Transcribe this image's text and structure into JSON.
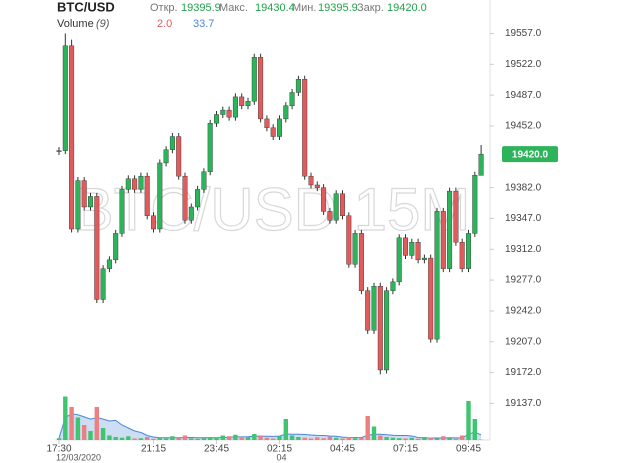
{
  "chart_data": {
    "type": "candlestick",
    "title": "BTC/USD",
    "watermark": "BTC/USD 15M",
    "ohlc_legend": [
      {
        "label": "Откр.",
        "value": "19395.9"
      },
      {
        "label": "Макс.",
        "value": "19430.4"
      },
      {
        "label": "Мин.",
        "value": "19395.9"
      },
      {
        "label": "Закр.",
        "value": "19420.0"
      }
    ],
    "volume_legend": {
      "label": "Volume",
      "period": "(9)",
      "value": "2.0",
      "ma": "33.7"
    },
    "categories": [
      "17:30",
      null,
      null,
      null,
      null,
      null,
      null,
      null,
      null,
      null,
      null,
      null,
      null,
      null,
      null,
      "21:15",
      null,
      null,
      null,
      null,
      null,
      null,
      null,
      null,
      null,
      "23:45",
      null,
      null,
      null,
      null,
      null,
      null,
      null,
      null,
      null,
      "02:15",
      null,
      null,
      null,
      null,
      null,
      null,
      null,
      null,
      null,
      "04:45",
      null,
      null,
      null,
      null,
      null,
      null,
      null,
      null,
      null,
      "07:15",
      null,
      null,
      null,
      null,
      null,
      null,
      null,
      null,
      null,
      "09:45",
      null,
      null
    ],
    "date_labels": [
      "12/03/2020",
      null,
      null,
      null,
      null,
      null,
      null,
      null,
      null,
      null,
      null,
      null,
      null,
      null,
      null,
      null,
      null,
      null,
      null,
      null,
      null,
      null,
      null,
      null,
      null,
      null,
      null,
      null,
      null,
      null,
      null,
      null,
      null,
      null,
      null,
      "04",
      null,
      null,
      null,
      null,
      null,
      null,
      null,
      null,
      null,
      null,
      null,
      null,
      null,
      null,
      null,
      null,
      null,
      null,
      null,
      null,
      null,
      null,
      null,
      null,
      null,
      null,
      null,
      null,
      null,
      null,
      null,
      null
    ],
    "open": [
      19423,
      19424,
      19543,
      19335,
      19390,
      19360,
      19372,
      19255,
      19290,
      19300,
      19330,
      19380,
      19392,
      19380,
      19395,
      19350,
      19335,
      19410,
      19425,
      19440,
      19395,
      19345,
      19360,
      19380,
      19400,
      19455,
      19465,
      19470,
      19462,
      19485,
      19475,
      19480,
      19530,
      19460,
      19450,
      19440,
      19460,
      19475,
      19490,
      19505,
      19395,
      19385,
      19382,
      19355,
      19345,
      19375,
      19350,
      19295,
      19330,
      19265,
      19220,
      19270,
      19175,
      19265,
      19275,
      19325,
      19305,
      19320,
      19300,
      19302,
      19210,
      19355,
      19290,
      19378,
      19320,
      19290,
      19330,
      19395.9
    ],
    "high": [
      19428,
      19557,
      19550,
      19394,
      19394,
      19376,
      19376,
      19294,
      19304,
      19334,
      19384,
      19396,
      19396,
      19399,
      19399,
      19354,
      19414,
      19429,
      19444,
      19444,
      19399,
      19364,
      19384,
      19404,
      19459,
      19469,
      19474,
      19474,
      19489,
      19489,
      19484,
      19534,
      19534,
      19464,
      19454,
      19464,
      19479,
      19494,
      19509,
      19509,
      19399,
      19389,
      19386,
      19359,
      19379,
      19379,
      19354,
      19334,
      19334,
      19269,
      19274,
      19274,
      19269,
      19279,
      19329,
      19329,
      19324,
      19324,
      19306,
      19306,
      19359,
      19359,
      19382,
      19382,
      19324,
      19334,
      19400,
      19430.4
    ],
    "low": [
      19419,
      19420,
      19331,
      19331,
      19356,
      19356,
      19251,
      19251,
      19286,
      19296,
      19326,
      19376,
      19376,
      19376,
      19346,
      19331,
      19331,
      19406,
      19421,
      19391,
      19341,
      19341,
      19356,
      19376,
      19396,
      19451,
      19461,
      19458,
      19458,
      19471,
      19471,
      19476,
      19456,
      19446,
      19436,
      19436,
      19456,
      19471,
      19486,
      19391,
      19381,
      19378,
      19351,
      19341,
      19341,
      19346,
      19291,
      19291,
      19261,
      19216,
      19216,
      19170,
      19171,
      19261,
      19271,
      19301,
      19301,
      19296,
      19296,
      19206,
      19206,
      19286,
      19286,
      19316,
      19286,
      19286,
      19326,
      19395.9
    ],
    "close": [
      19424,
      19543,
      19335,
      19390,
      19360,
      19372,
      19255,
      19290,
      19300,
      19330,
      19380,
      19392,
      19380,
      19395,
      19350,
      19335,
      19410,
      19425,
      19440,
      19395,
      19345,
      19360,
      19380,
      19400,
      19455,
      19465,
      19470,
      19462,
      19485,
      19475,
      19480,
      19530,
      19460,
      19450,
      19440,
      19460,
      19475,
      19490,
      19505,
      19395,
      19385,
      19382,
      19355,
      19345,
      19375,
      19350,
      19295,
      19330,
      19265,
      19220,
      19270,
      19175,
      19265,
      19275,
      19325,
      19305,
      19320,
      19300,
      19302,
      19210,
      19355,
      19290,
      19378,
      19320,
      19290,
      19330,
      19396,
      19420
    ],
    "volume": [
      12,
      290,
      220,
      150,
      100,
      60,
      220,
      80,
      30,
      20,
      15,
      25,
      10,
      12,
      20,
      8,
      15,
      10,
      25,
      12,
      30,
      10,
      8,
      12,
      20,
      15,
      30,
      25,
      35,
      15,
      20,
      40,
      30,
      15,
      10,
      25,
      140,
      30,
      20,
      15,
      10,
      18,
      12,
      22,
      15,
      10,
      20,
      12,
      15,
      160,
      90,
      30,
      20,
      15,
      12,
      10,
      15,
      8,
      20,
      15,
      10,
      25,
      12,
      8,
      30,
      260,
      140,
      2
    ],
    "volume_ma": [
      12,
      150,
      174,
      168,
      154,
      139,
      149,
      139,
      127,
      131,
      100,
      80,
      60,
      50,
      30,
      20,
      15,
      15,
      15,
      15,
      16,
      17,
      15,
      15,
      16,
      15,
      17,
      18,
      21,
      21,
      22,
      25,
      26,
      25,
      24,
      26,
      40,
      38,
      38,
      37,
      33,
      31,
      30,
      27,
      25,
      19,
      17,
      16,
      16,
      32,
      38,
      38,
      35,
      32,
      30,
      30,
      27,
      17,
      13,
      13,
      13,
      14,
      15,
      14,
      13,
      39,
      53,
      33.7
    ],
    "up_color": "#2db45a",
    "down_color": "#e05b5b",
    "up_volume_color": "#3fc46f",
    "down_volume_color": "#ec7f7f",
    "ma_color": "#4a86d8",
    "ylim": [
      19100,
      19595
    ],
    "vlim": [
      0,
      300
    ],
    "yticks": [
      {
        "value": 19557,
        "label": "19557.0"
      },
      {
        "value": 19522,
        "label": "19522.0"
      },
      {
        "value": 19487,
        "label": "19487.0"
      },
      {
        "value": 19452,
        "label": "19452.0"
      },
      {
        "value": 19382,
        "label": "19382.0"
      },
      {
        "value": 19347,
        "label": "19347.0"
      },
      {
        "value": 19312,
        "label": "19312.0"
      },
      {
        "value": 19277,
        "label": "19277.0"
      },
      {
        "value": 19242,
        "label": "19242.0"
      },
      {
        "value": 19207,
        "label": "19207.0"
      },
      {
        "value": 19172,
        "label": "19172.0"
      },
      {
        "value": 19137,
        "label": "19137.0"
      }
    ],
    "last_price": {
      "value": 19420,
      "label": "19420.0"
    }
  }
}
